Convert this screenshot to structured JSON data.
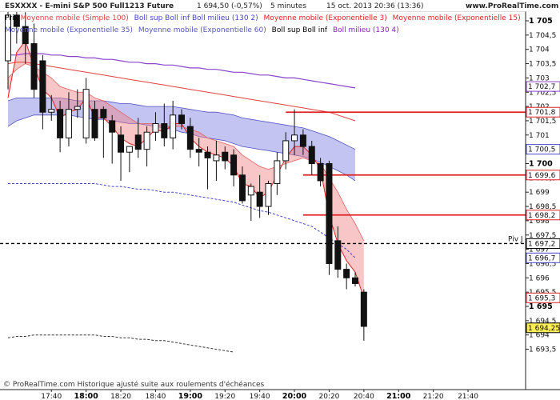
{
  "header": {
    "symbol": "ESXXXX - E-mini S&P 500 Full1213 Future",
    "quote": "1 694,50 (-0,57%)",
    "period": "5 minutes",
    "datetime": "15 oct. 2013 20:36 (13:36)",
    "site": "www.ProRealTime.com"
  },
  "legend": {
    "line1": [
      {
        "text": "Prix",
        "color": "#000000"
      },
      {
        "text": "Moyenne mobile (Simple 100)",
        "color": "#e04040"
      },
      {
        "text": "Boll sup Boll inf Boll milieu (130 2)",
        "color": "#4444cc"
      },
      {
        "text": "Moyenne mobile (Exponentielle 3)",
        "color": "#dd2222"
      },
      {
        "text": "Moyenne mobile (Exponentielle 15)",
        "color": "#dd2222"
      }
    ],
    "line2": [
      {
        "text": "Moyenne mobile (Exponentielle 35)",
        "color": "#5555bb"
      },
      {
        "text": "Moyenne mobile (Exponentielle 60)",
        "color": "#5555bb"
      },
      {
        "text": "Boll sup Boll inf",
        "color": "#000000"
      },
      {
        "text": "Boll milieu (130 4)",
        "color": "#8822bb"
      }
    ]
  },
  "footer": {
    "text": "© ProRealTime.com Historique ajusté suite aux roulements d'échéances"
  },
  "colors": {
    "bull": "#ffffff",
    "bear": "#111111",
    "sma100": "#e04040",
    "boll_band": "#5555dd",
    "ema_ribbon": "#f08080",
    "purple": "#8844cc",
    "level": "#e02020"
  },
  "chart_data": {
    "type": "candlestick",
    "ylim": [
      1693.3,
      1706.0
    ],
    "y_ticks": [
      "1 705",
      "1 704,5",
      "1 704",
      "1 703,5",
      "1 703",
      "1 702,5",
      "1 702",
      "1 701,5",
      "1 701",
      "1 700,5",
      "1 700",
      "1 699,5",
      "1 699",
      "1 698,5",
      "1 698",
      "1 697,5",
      "1 697",
      "1 696,5",
      "1 696",
      "1 695,5",
      "1 695",
      "1 694,5",
      "1 694",
      "1 693,5"
    ],
    "y_tick_values": [
      1705,
      1704.5,
      1704,
      1703.5,
      1703,
      1702.5,
      1702,
      1701.5,
      1701,
      1700.5,
      1700,
      1699.5,
      1699,
      1698.5,
      1698,
      1697.5,
      1697,
      1696.5,
      1696,
      1695.5,
      1695,
      1694.5,
      1694,
      1693.5
    ],
    "y_bold_values": [
      1705,
      1700,
      1695
    ],
    "x_ticks": [
      "17:40",
      "18:00",
      "18:20",
      "18:40",
      "19:00",
      "19:20",
      "19:40",
      "20:00",
      "20:20",
      "20:40",
      "21:00",
      "21:20",
      "21:40"
    ],
    "x_tick_index": [
      5,
      9,
      13,
      17,
      21,
      25,
      29,
      33,
      37,
      41,
      45,
      49,
      53
    ],
    "x_bold": [
      "18:00",
      "19:00",
      "20:00",
      "21:00"
    ],
    "candles": [
      {
        "o": 1703.6,
        "h": 1705.8,
        "l": 1702.6,
        "c": 1705.2
      },
      {
        "o": 1705.2,
        "h": 1705.9,
        "l": 1704.2,
        "c": 1704.8
      },
      {
        "o": 1704.8,
        "h": 1705.3,
        "l": 1703.5,
        "c": 1704.2
      },
      {
        "o": 1704.2,
        "h": 1704.9,
        "l": 1702.3,
        "c": 1702.6
      },
      {
        "o": 1703.6,
        "h": 1703.8,
        "l": 1701.2,
        "c": 1701.8
      },
      {
        "o": 1701.8,
        "h": 1702.4,
        "l": 1701.5,
        "c": 1701.9
      },
      {
        "o": 1701.9,
        "h": 1702.2,
        "l": 1700.4,
        "c": 1700.9
      },
      {
        "o": 1700.9,
        "h": 1702.5,
        "l": 1700.6,
        "c": 1701.9
      },
      {
        "o": 1701.9,
        "h": 1702.6,
        "l": 1701.6,
        "c": 1702.0
      },
      {
        "o": 1700.9,
        "h": 1703.0,
        "l": 1700.7,
        "c": 1702.6
      },
      {
        "o": 1701.9,
        "h": 1702.2,
        "l": 1700.8,
        "c": 1700.9
      },
      {
        "o": 1701.9,
        "h": 1702.0,
        "l": 1700.2,
        "c": 1701.6
      },
      {
        "o": 1701.5,
        "h": 1701.7,
        "l": 1700.0,
        "c": 1701.1
      },
      {
        "o": 1701.0,
        "h": 1701.3,
        "l": 1699.4,
        "c": 1700.4
      },
      {
        "o": 1700.4,
        "h": 1700.6,
        "l": 1699.7,
        "c": 1700.6
      },
      {
        "o": 1701.0,
        "h": 1701.6,
        "l": 1700.2,
        "c": 1700.5
      },
      {
        "o": 1700.5,
        "h": 1701.3,
        "l": 1699.9,
        "c": 1701.1
      },
      {
        "o": 1701.1,
        "h": 1701.8,
        "l": 1700.8,
        "c": 1701.4
      },
      {
        "o": 1701.4,
        "h": 1702.1,
        "l": 1700.6,
        "c": 1700.9
      },
      {
        "o": 1700.9,
        "h": 1702.2,
        "l": 1700.5,
        "c": 1701.7
      },
      {
        "o": 1701.7,
        "h": 1701.9,
        "l": 1701.2,
        "c": 1701.4
      },
      {
        "o": 1701.3,
        "h": 1701.6,
        "l": 1700.2,
        "c": 1700.5
      },
      {
        "o": 1700.5,
        "h": 1700.9,
        "l": 1699.9,
        "c": 1700.4
      },
      {
        "o": 1700.4,
        "h": 1700.6,
        "l": 1699.1,
        "c": 1700.2
      },
      {
        "o": 1700.1,
        "h": 1700.8,
        "l": 1699.4,
        "c": 1700.3
      },
      {
        "o": 1700.4,
        "h": 1700.6,
        "l": 1699.8,
        "c": 1700.1
      },
      {
        "o": 1700.3,
        "h": 1700.5,
        "l": 1699.2,
        "c": 1699.6
      },
      {
        "o": 1699.6,
        "h": 1699.9,
        "l": 1698.6,
        "c": 1698.7
      },
      {
        "o": 1698.9,
        "h": 1699.3,
        "l": 1698.0,
        "c": 1699.2
      },
      {
        "o": 1699.0,
        "h": 1699.6,
        "l": 1698.1,
        "c": 1698.5
      },
      {
        "o": 1698.5,
        "h": 1699.4,
        "l": 1698.2,
        "c": 1699.3
      },
      {
        "o": 1699.3,
        "h": 1700.4,
        "l": 1698.9,
        "c": 1700.1
      },
      {
        "o": 1700.1,
        "h": 1701.1,
        "l": 1699.8,
        "c": 1700.8
      },
      {
        "o": 1700.8,
        "h": 1701.9,
        "l": 1700.3,
        "c": 1701.0
      },
      {
        "o": 1701.0,
        "h": 1701.2,
        "l": 1700.3,
        "c": 1700.6
      },
      {
        "o": 1700.6,
        "h": 1700.8,
        "l": 1699.6,
        "c": 1700.0
      },
      {
        "o": 1700.0,
        "h": 1700.2,
        "l": 1699.2,
        "c": 1699.4
      },
      {
        "o": 1700.0,
        "h": 1700.1,
        "l": 1696.1,
        "c": 1696.5
      },
      {
        "o": 1697.3,
        "h": 1697.8,
        "l": 1696.0,
        "c": 1696.3
      },
      {
        "o": 1696.3,
        "h": 1696.5,
        "l": 1695.6,
        "c": 1696.0
      },
      {
        "o": 1696.0,
        "h": 1696.2,
        "l": 1695.7,
        "c": 1695.8
      },
      {
        "o": 1695.5,
        "h": 1695.6,
        "l": 1693.8,
        "c": 1694.3
      }
    ],
    "levels": [
      {
        "value": 1701.8,
        "label": "1 701,8",
        "color": "#e02020",
        "start_index": 32
      },
      {
        "value": 1699.6,
        "label": "1 699,6",
        "color": "#e02020",
        "start_index": 34
      },
      {
        "value": 1698.2,
        "label": "1 698,2",
        "color": "#e02020",
        "start_index": 34
      },
      {
        "value": 1697.2,
        "label": "1 697,2",
        "color": "#000000",
        "dashed": true,
        "start_index": -1,
        "name": "Piv J"
      }
    ],
    "price_labels": [
      {
        "value": 1702.7,
        "label": "1 702,7",
        "color": "#8844cc"
      },
      {
        "value": 1700.5,
        "label": "1 700,5",
        "color": "#4444cc"
      },
      {
        "value": 1696.7,
        "label": "1 696,7",
        "color": "#4444cc"
      },
      {
        "value": 1695.3,
        "label": "1 695,3",
        "color": "#e02020"
      },
      {
        "value": 1694.25,
        "label": "1 694,25",
        "color": "#000000",
        "fill": "#ffee55"
      }
    ],
    "bands": {
      "boll_upper": [
        1702.2,
        1702.3,
        1702.3,
        1702.3,
        1702.3,
        1702.3,
        1702.3,
        1702.25,
        1702.2,
        1702.2,
        1702.2,
        1702.2,
        1702.15,
        1702.1,
        1702.1,
        1702.05,
        1702.0,
        1702.0,
        1702.0,
        1702.0,
        1701.95,
        1701.9,
        1701.85,
        1701.8,
        1701.8,
        1701.75,
        1701.7,
        1701.6,
        1701.55,
        1701.5,
        1701.45,
        1701.4,
        1701.35,
        1701.3,
        1701.25,
        1701.15,
        1701.05,
        1700.95,
        1700.8,
        1700.65,
        1700.5
      ],
      "boll_lower": [
        1701.3,
        1701.5,
        1701.6,
        1701.7,
        1701.7,
        1701.7,
        1701.7,
        1701.7,
        1701.65,
        1701.6,
        1701.55,
        1701.55,
        1701.5,
        1701.45,
        1701.4,
        1701.4,
        1701.35,
        1701.3,
        1701.25,
        1701.2,
        1701.1,
        1701.05,
        1700.95,
        1700.9,
        1700.85,
        1700.8,
        1700.7,
        1700.6,
        1700.55,
        1700.5,
        1700.45,
        1700.4,
        1700.35,
        1700.3,
        1700.25,
        1700.15,
        1700.05,
        1699.9,
        1699.75,
        1699.6,
        1699.4
      ],
      "ema_fast": [
        1702.3,
        1703.9,
        1704.3,
        1703.4,
        1702.6,
        1702.3,
        1701.6,
        1701.8,
        1701.9,
        1702.3,
        1701.6,
        1701.6,
        1701.3,
        1700.9,
        1700.7,
        1700.6,
        1700.9,
        1701.2,
        1701.1,
        1701.4,
        1701.4,
        1700.9,
        1700.6,
        1700.4,
        1700.3,
        1700.2,
        1699.9,
        1699.3,
        1699.2,
        1698.8,
        1699.0,
        1699.6,
        1700.2,
        1700.6,
        1700.6,
        1700.3,
        1699.8,
        1698.2,
        1697.2,
        1696.6,
        1696.2,
        1695.3
      ],
      "ema_slow": [
        1703.0,
        1703.3,
        1703.5,
        1703.4,
        1703.2,
        1703.0,
        1702.7,
        1702.6,
        1702.5,
        1702.5,
        1702.3,
        1702.2,
        1702.0,
        1701.8,
        1701.6,
        1701.4,
        1701.4,
        1701.4,
        1701.3,
        1701.3,
        1701.3,
        1701.2,
        1701.1,
        1700.9,
        1700.8,
        1700.7,
        1700.6,
        1700.3,
        1700.1,
        1699.9,
        1699.8,
        1699.9,
        1700.0,
        1700.1,
        1700.2,
        1700.1,
        1700.0,
        1699.5,
        1699.0,
        1698.4,
        1697.9,
        1697.3
      ],
      "sma100": [
        1703.5,
        1703.55,
        1703.55,
        1703.5,
        1703.45,
        1703.4,
        1703.35,
        1703.3,
        1703.25,
        1703.2,
        1703.15,
        1703.1,
        1703.05,
        1703.0,
        1702.95,
        1702.9,
        1702.85,
        1702.8,
        1702.75,
        1702.7,
        1702.65,
        1702.6,
        1702.55,
        1702.5,
        1702.45,
        1702.4,
        1702.35,
        1702.3,
        1702.25,
        1702.2,
        1702.15,
        1702.1,
        1702.05,
        1702.0,
        1701.95,
        1701.9,
        1701.85,
        1701.8,
        1701.7,
        1701.6,
        1701.5
      ],
      "purple": [
        1703.8,
        1703.8,
        1703.85,
        1703.85,
        1703.85,
        1703.8,
        1703.8,
        1703.75,
        1703.75,
        1703.7,
        1703.7,
        1703.65,
        1703.65,
        1703.6,
        1703.55,
        1703.55,
        1703.5,
        1703.5,
        1703.45,
        1703.45,
        1703.4,
        1703.35,
        1703.35,
        1703.3,
        1703.3,
        1703.25,
        1703.2,
        1703.2,
        1703.15,
        1703.1,
        1703.1,
        1703.05,
        1703.0,
        1703.0,
        1702.95,
        1702.9,
        1702.85,
        1702.8,
        1702.75,
        1702.7,
        1702.65
      ],
      "dashed_blue": [
        1699.3,
        1699.3,
        1699.3,
        1699.3,
        1699.3,
        1699.3,
        1699.3,
        1699.3,
        1699.3,
        1699.3,
        1699.3,
        1699.25,
        1699.2,
        1699.2,
        1699.15,
        1699.1,
        1699.1,
        1699.05,
        1699.0,
        1699.0,
        1698.95,
        1698.9,
        1698.85,
        1698.8,
        1698.75,
        1698.7,
        1698.65,
        1698.55,
        1698.45,
        1698.35,
        1698.3,
        1698.2,
        1698.1,
        1698.0,
        1697.9,
        1697.8,
        1697.6,
        1697.4,
        1697.2,
        1697.0,
        1696.7
      ],
      "dashed_black": [
        1693.9,
        1693.95,
        1693.95,
        1694.0,
        1694.0,
        1694.0,
        1694.0,
        1694.0,
        1694.0,
        1694.0,
        1694.0,
        1693.95,
        1693.95,
        1693.9,
        1693.9,
        1693.85,
        1693.85,
        1693.8,
        1693.8,
        1693.75,
        1693.7,
        1693.65,
        1693.6,
        1693.55,
        1693.5,
        1693.45,
        1693.4
      ]
    }
  }
}
